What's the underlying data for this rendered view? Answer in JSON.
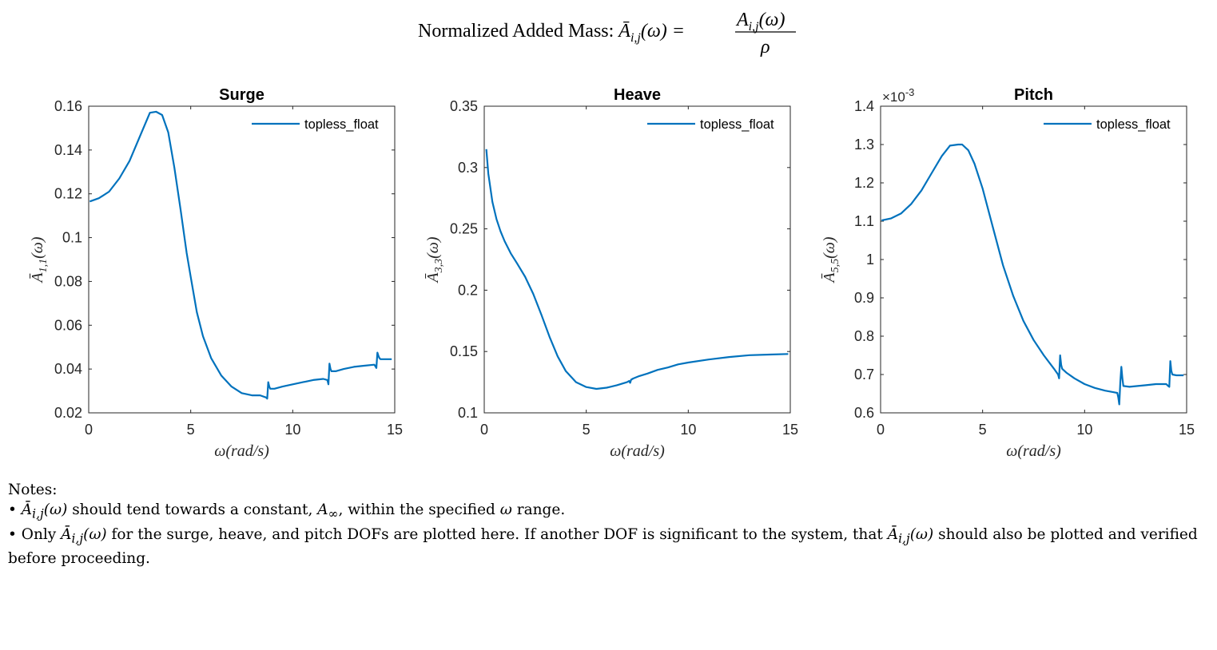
{
  "figure": {
    "title_text": "Normalized Added Mass: ",
    "title_lhs": "Ā",
    "title_lhs_sub": "i,j",
    "title_lhs_arg": "(ω) =",
    "title_num": "A",
    "title_num_sub": "i,j",
    "title_num_arg": "(ω)",
    "title_den": "ρ"
  },
  "colors": {
    "line": "#0072BD",
    "axis": "#262626",
    "grid_tick": "#262626"
  },
  "chart_data": [
    {
      "type": "line",
      "title": "Surge",
      "xlabel": "ω(rad/s)",
      "ylabel_base": "Ā",
      "ylabel_sub": "1,1",
      "ylabel_arg": "(ω)",
      "xlim": [
        0,
        15
      ],
      "ylim": [
        0.02,
        0.16
      ],
      "xticks": [
        0,
        5,
        10,
        15
      ],
      "xtick_labels": [
        "0",
        "5",
        "10",
        "15"
      ],
      "yticks": [
        0.02,
        0.04,
        0.06,
        0.08,
        0.1,
        0.12,
        0.14,
        0.16
      ],
      "ytick_labels": [
        "0.02",
        "0.04",
        "0.06",
        "0.08",
        "0.1",
        "0.12",
        "0.14",
        "0.16"
      ],
      "exponent_label": "",
      "legend": "top-right",
      "series": [
        {
          "name": "topless_float",
          "x": [
            0.05,
            0.5,
            1.0,
            1.5,
            2.0,
            2.5,
            3.0,
            3.3,
            3.6,
            3.9,
            4.2,
            4.5,
            4.8,
            5.0,
            5.3,
            5.6,
            6.0,
            6.5,
            7.0,
            7.5,
            8.0,
            8.4,
            8.7,
            8.75,
            8.8,
            8.85,
            8.9,
            9.1,
            9.5,
            10.0,
            10.5,
            11.0,
            11.5,
            11.7,
            11.75,
            11.8,
            11.85,
            11.9,
            12.1,
            12.5,
            13.0,
            13.5,
            14.0,
            14.1,
            14.15,
            14.2,
            14.25,
            14.3,
            14.5,
            14.85
          ],
          "y": [
            0.1165,
            0.118,
            0.121,
            0.127,
            0.135,
            0.146,
            0.157,
            0.1575,
            0.156,
            0.148,
            0.132,
            0.113,
            0.093,
            0.082,
            0.066,
            0.055,
            0.045,
            0.037,
            0.032,
            0.029,
            0.028,
            0.028,
            0.027,
            0.0265,
            0.034,
            0.032,
            0.031,
            0.031,
            0.032,
            0.033,
            0.034,
            0.035,
            0.0355,
            0.035,
            0.033,
            0.0425,
            0.04,
            0.039,
            0.039,
            0.04,
            0.041,
            0.0415,
            0.042,
            0.0405,
            0.0475,
            0.046,
            0.045,
            0.0445,
            0.0445,
            0.0445
          ]
        }
      ]
    },
    {
      "type": "line",
      "title": "Heave",
      "xlabel": "ω(rad/s)",
      "ylabel_base": "Ā",
      "ylabel_sub": "3,3",
      "ylabel_arg": "(ω)",
      "xlim": [
        0,
        15
      ],
      "ylim": [
        0.1,
        0.35
      ],
      "xticks": [
        0,
        5,
        10,
        15
      ],
      "xtick_labels": [
        "0",
        "5",
        "10",
        "15"
      ],
      "yticks": [
        0.1,
        0.15,
        0.2,
        0.25,
        0.3,
        0.35
      ],
      "ytick_labels": [
        "0.1",
        "0.15",
        "0.2",
        "0.25",
        "0.3",
        "0.35"
      ],
      "exponent_label": "",
      "legend": "top-right",
      "series": [
        {
          "name": "topless_float",
          "x": [
            0.1,
            0.2,
            0.4,
            0.6,
            0.8,
            1.0,
            1.3,
            1.6,
            2.0,
            2.4,
            2.8,
            3.2,
            3.6,
            4.0,
            4.5,
            5.0,
            5.5,
            6.0,
            6.5,
            7.0,
            7.1,
            7.15,
            7.2,
            7.3,
            7.6,
            8.0,
            8.5,
            9.0,
            9.5,
            10.0,
            11.0,
            12.0,
            13.0,
            14.0,
            14.9
          ],
          "y": [
            0.315,
            0.295,
            0.272,
            0.258,
            0.248,
            0.24,
            0.23,
            0.222,
            0.211,
            0.197,
            0.18,
            0.162,
            0.146,
            0.134,
            0.125,
            0.121,
            0.1195,
            0.1205,
            0.1225,
            0.125,
            0.126,
            0.1245,
            0.127,
            0.128,
            0.13,
            0.132,
            0.135,
            0.137,
            0.1395,
            0.141,
            0.1435,
            0.1455,
            0.147,
            0.1475,
            0.148
          ]
        }
      ]
    },
    {
      "type": "line",
      "title": "Pitch",
      "xlabel": "ω(rad/s)",
      "ylabel_base": "Ā",
      "ylabel_sub": "5,5",
      "ylabel_arg": "(ω)",
      "xlim": [
        0,
        15
      ],
      "ylim": [
        0.6,
        1.4
      ],
      "xticks": [
        0,
        5,
        10,
        15
      ],
      "xtick_labels": [
        "0",
        "5",
        "10",
        "15"
      ],
      "yticks": [
        0.6,
        0.7,
        0.8,
        0.9,
        1.0,
        1.1,
        1.2,
        1.3,
        1.4
      ],
      "ytick_labels": [
        "0.6",
        "0.7",
        "0.8",
        "0.9",
        "1",
        "1.1",
        "1.2",
        "1.3",
        "1.4"
      ],
      "exponent_label": "×10",
      "exponent_power": "-3",
      "legend": "top-right",
      "series": [
        {
          "name": "topless_float",
          "x": [
            0.05,
            0.5,
            1.0,
            1.5,
            2.0,
            2.5,
            3.0,
            3.4,
            3.8,
            4.0,
            4.3,
            4.6,
            5.0,
            5.5,
            6.0,
            6.5,
            7.0,
            7.5,
            8.0,
            8.5,
            8.7,
            8.75,
            8.8,
            8.85,
            8.9,
            9.1,
            9.5,
            10.0,
            10.5,
            11.0,
            11.4,
            11.6,
            11.65,
            11.7,
            11.75,
            11.8,
            11.85,
            11.9,
            12.2,
            12.6,
            13.0,
            13.5,
            14.0,
            14.1,
            14.15,
            14.2,
            14.25,
            14.3,
            14.5,
            14.85
          ],
          "y": [
            1.102,
            1.107,
            1.12,
            1.145,
            1.18,
            1.225,
            1.27,
            1.297,
            1.3,
            1.3,
            1.285,
            1.25,
            1.185,
            1.085,
            0.985,
            0.905,
            0.84,
            0.79,
            0.75,
            0.715,
            0.7,
            0.69,
            0.75,
            0.725,
            0.715,
            0.705,
            0.69,
            0.675,
            0.665,
            0.658,
            0.654,
            0.652,
            0.64,
            0.622,
            0.68,
            0.72,
            0.69,
            0.67,
            0.668,
            0.67,
            0.672,
            0.675,
            0.675,
            0.67,
            0.668,
            0.735,
            0.71,
            0.7,
            0.698,
            0.698
          ]
        }
      ]
    }
  ],
  "notes": {
    "heading": "Notes:",
    "bullet1_pre": "• ",
    "bullet1_sym": "Ā",
    "bullet1_sub": "i,j",
    "bullet1_arg": "(ω)",
    "bullet1_text": " should tend towards a constant, ",
    "bullet1_ainf": "A",
    "bullet1_ainf_sub": "∞",
    "bullet1_text2": ", within the specified ",
    "bullet1_omega": "ω",
    "bullet1_text3": " range.",
    "bullet2_pre": "• Only ",
    "bullet2_sym": "Ā",
    "bullet2_sub": "i,j",
    "bullet2_arg": "(ω)",
    "bullet2_text": " for the surge, heave, and pitch DOFs are plotted here. If another DOF is significant to the system, that ",
    "bullet2_sym2": "Ā",
    "bullet2_sub2": "i,j",
    "bullet2_arg2": "(ω)",
    "bullet2_text2": " should also be plotted and verified before proceeding."
  }
}
